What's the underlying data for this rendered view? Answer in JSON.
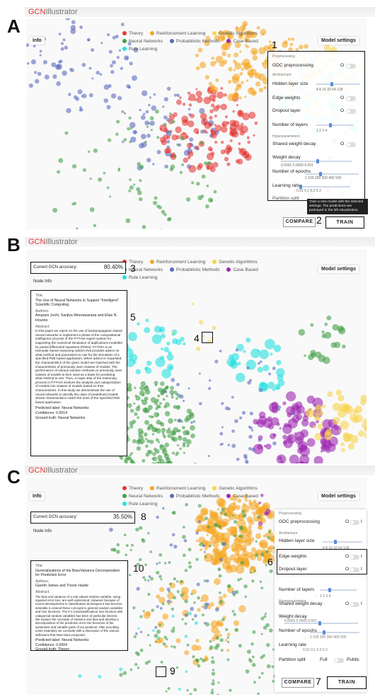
{
  "app": {
    "name_red": "GCN",
    "name_gray": "Illustrator"
  },
  "legend": [
    {
      "label": "Theory",
      "color": "#e53935"
    },
    {
      "label": "Reinforcement Learning",
      "color": "#f5a623"
    },
    {
      "label": "Genetic Algorithms",
      "color": "#f7d44c"
    },
    {
      "label": "Neural Networks",
      "color": "#43a047"
    },
    {
      "label": "Probabilistic Methods",
      "color": "#5c6bc0"
    },
    {
      "label": "Case Based",
      "color": "#9c27b0"
    },
    {
      "label": "Rule Learning",
      "color": "#26e0e0"
    }
  ],
  "tabs": {
    "info": "Info",
    "model_settings": "Model settings",
    "node_info": "Node Info"
  },
  "panels": [
    {
      "letter": "A"
    },
    {
      "letter": "B"
    },
    {
      "letter": "C"
    }
  ],
  "annotations": {
    "n1": "1",
    "n2": "2",
    "n3": "3",
    "n4": "4",
    "n5": "5",
    "n6": "6",
    "n7": "7",
    "n8": "8",
    "n9": "9",
    "n10": "10"
  },
  "settings": {
    "preprocessing": "Preprocessing",
    "gdc": "GDC preprocessing",
    "architecture": "Architecture",
    "hidden": "Hidden layer size",
    "hidden_ticks": "4   8  16  32  64  128",
    "edge": "Edge weights",
    "dropout": "Dropout layer",
    "layers": "Number of layers",
    "layers_ticks": "1     2     3     4",
    "hyper": "Hyperparameters",
    "shared": "Shared weight decay",
    "wd": "Weight decay",
    "wd_ticks": "0.0001   0.0005   0.001",
    "epochs": "Number of epochs",
    "epochs_ticks": "1  100 200 300 400 500",
    "lr": "Learning rate",
    "lr_ticks": "0.01    0.1    0.2    0.3",
    "split": "Partition split",
    "full": "Full",
    "public": "Public",
    "off": "O",
    "on": "I"
  },
  "buttons": {
    "compare": "COMPARE",
    "train": "TRAIN"
  },
  "tooltip": "Train a new model with the selected settings. The predictions are portrayed in the left visualization.",
  "accuracy_label": "Current GCN accuracy:",
  "accuracy_b": "80.40%",
  "accuracy_c": "35.50%",
  "paper_b": {
    "title_label": "Title:",
    "title": "The Use of Neural Networks to Support \"Intelligent\" Scientific Computing",
    "authors_label": "Authors:",
    "authors": "Anupam Joshi, Sanjiva Weerawarana and Elias N. Houstis",
    "abstract_label": "Abstract:",
    "abstract": "In this paper we report on the use of backpropagation based neural networks to implement a phase of the computational intelligence process of the PYTHIA expert system for supporting the numerical simulation of applications modelled by partial differential equations (PDEs). PYTHIA is an exemplar based reasoning system that provides advice on what method and parameters to use for the simulation of a specified PDE based application. When advice is requested, the characteristics of the given model are matched with the characteristics of previously seen classes of models. The performance of various solution methods on previously seen classes of models is then used as a basis for predicting what method to use. Thus, a major step of the reasoning process in PYTHIA involves the analysis and categorization of models into classes of models based on their characteristics. In this study we demonstrate the use of neural networks to identify the class of predefined models whose characteristics match the ones of the specified PDE based application.",
    "pred": "Predicted label: Neural Networks",
    "conf": "Confidence: 0.0014",
    "truth": "Ground truth: Neural Networks"
  },
  "paper_c": {
    "title_label": "Title:",
    "title": "Generalizations of the Bias/Variance Decomposition for Prediction Error",
    "authors_label": "Authors:",
    "authors": "Gareth James and Trevor Hastie",
    "abstract_label": "Abstract:",
    "abstract": "The bias and variance of a real valued random variable, using squared error loss, are well understood. However because of recent developments in classification techniques it has become desirable to extend these concepts to general random variables and loss functions. The 0-1 (misclassification) loss function with categorical random variables has been of particular interest. We explore the concepts of variance and bias and develop a decomposition of the prediction error into functions of the systematic and variable parts of our predictor. After providing some examples we conclude with a discussion of the various definitions that have been proposed.",
    "pred": "Predicted label: Neural Networks",
    "conf": "Confidence: 0.0004",
    "truth": "Ground truth: Theory"
  }
}
